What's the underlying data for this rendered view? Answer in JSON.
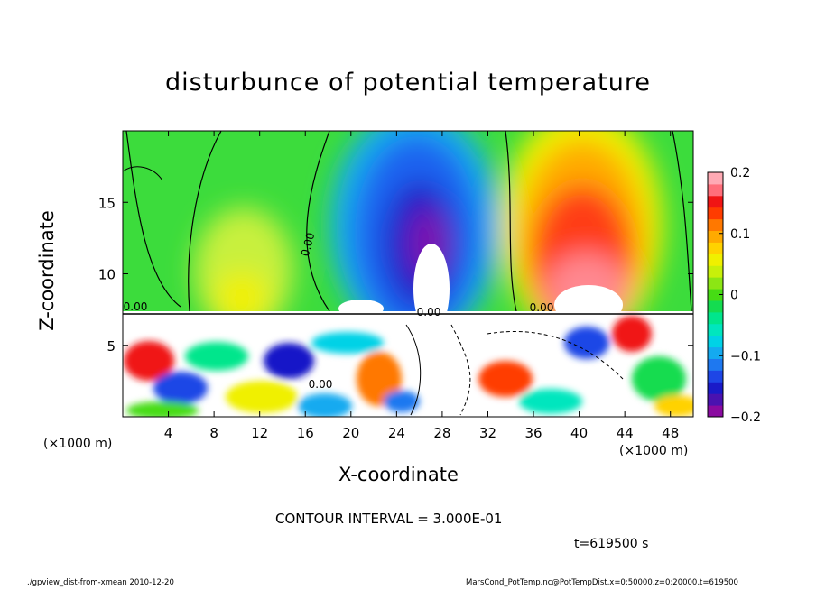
{
  "chart_data": {
    "type": "heatmap",
    "title": "disturbunce of potential temperature",
    "xlabel": "X-coordinate",
    "ylabel": "Z-coordinate",
    "x_unit_label": "(×1000 m)",
    "xlim": [
      0,
      50
    ],
    "ylim": [
      0,
      20
    ],
    "x_ticks": [
      4,
      8,
      12,
      16,
      20,
      24,
      28,
      32,
      36,
      40,
      44,
      48
    ],
    "y_ticks": [
      5,
      10,
      15
    ],
    "colorbar": {
      "range": [
        -0.2,
        0.2
      ],
      "ticks": [
        "0.2",
        "0.1",
        "0",
        "−0.1",
        "−0.2"
      ],
      "colors": [
        "#8a0aa0",
        "#4a12b0",
        "#1a1ac8",
        "#1e46e6",
        "#1e78f0",
        "#14aaf0",
        "#00d2e6",
        "#00e6be",
        "#00e68c",
        "#14dc50",
        "#46dc14",
        "#8ce614",
        "#c8f00a",
        "#f0f000",
        "#ffd200",
        "#ffaa00",
        "#ff7800",
        "#ff3c00",
        "#f01414",
        "#ff6e7a",
        "#ffaab4"
      ]
    },
    "contour_labels": [
      "0.00",
      "0.00",
      "0.00",
      "0.00",
      "0.00"
    ],
    "contour_interval": "CONTOUR INTERVAL = 3.000E-01",
    "time_label": "t=619500 s"
  },
  "footer": {
    "left": "./gpview_dist-from-xmean  2010-12-20",
    "right": "MarsCond_PotTemp.nc@PotTempDist,x=0:50000,z=0:20000,t=619500"
  }
}
